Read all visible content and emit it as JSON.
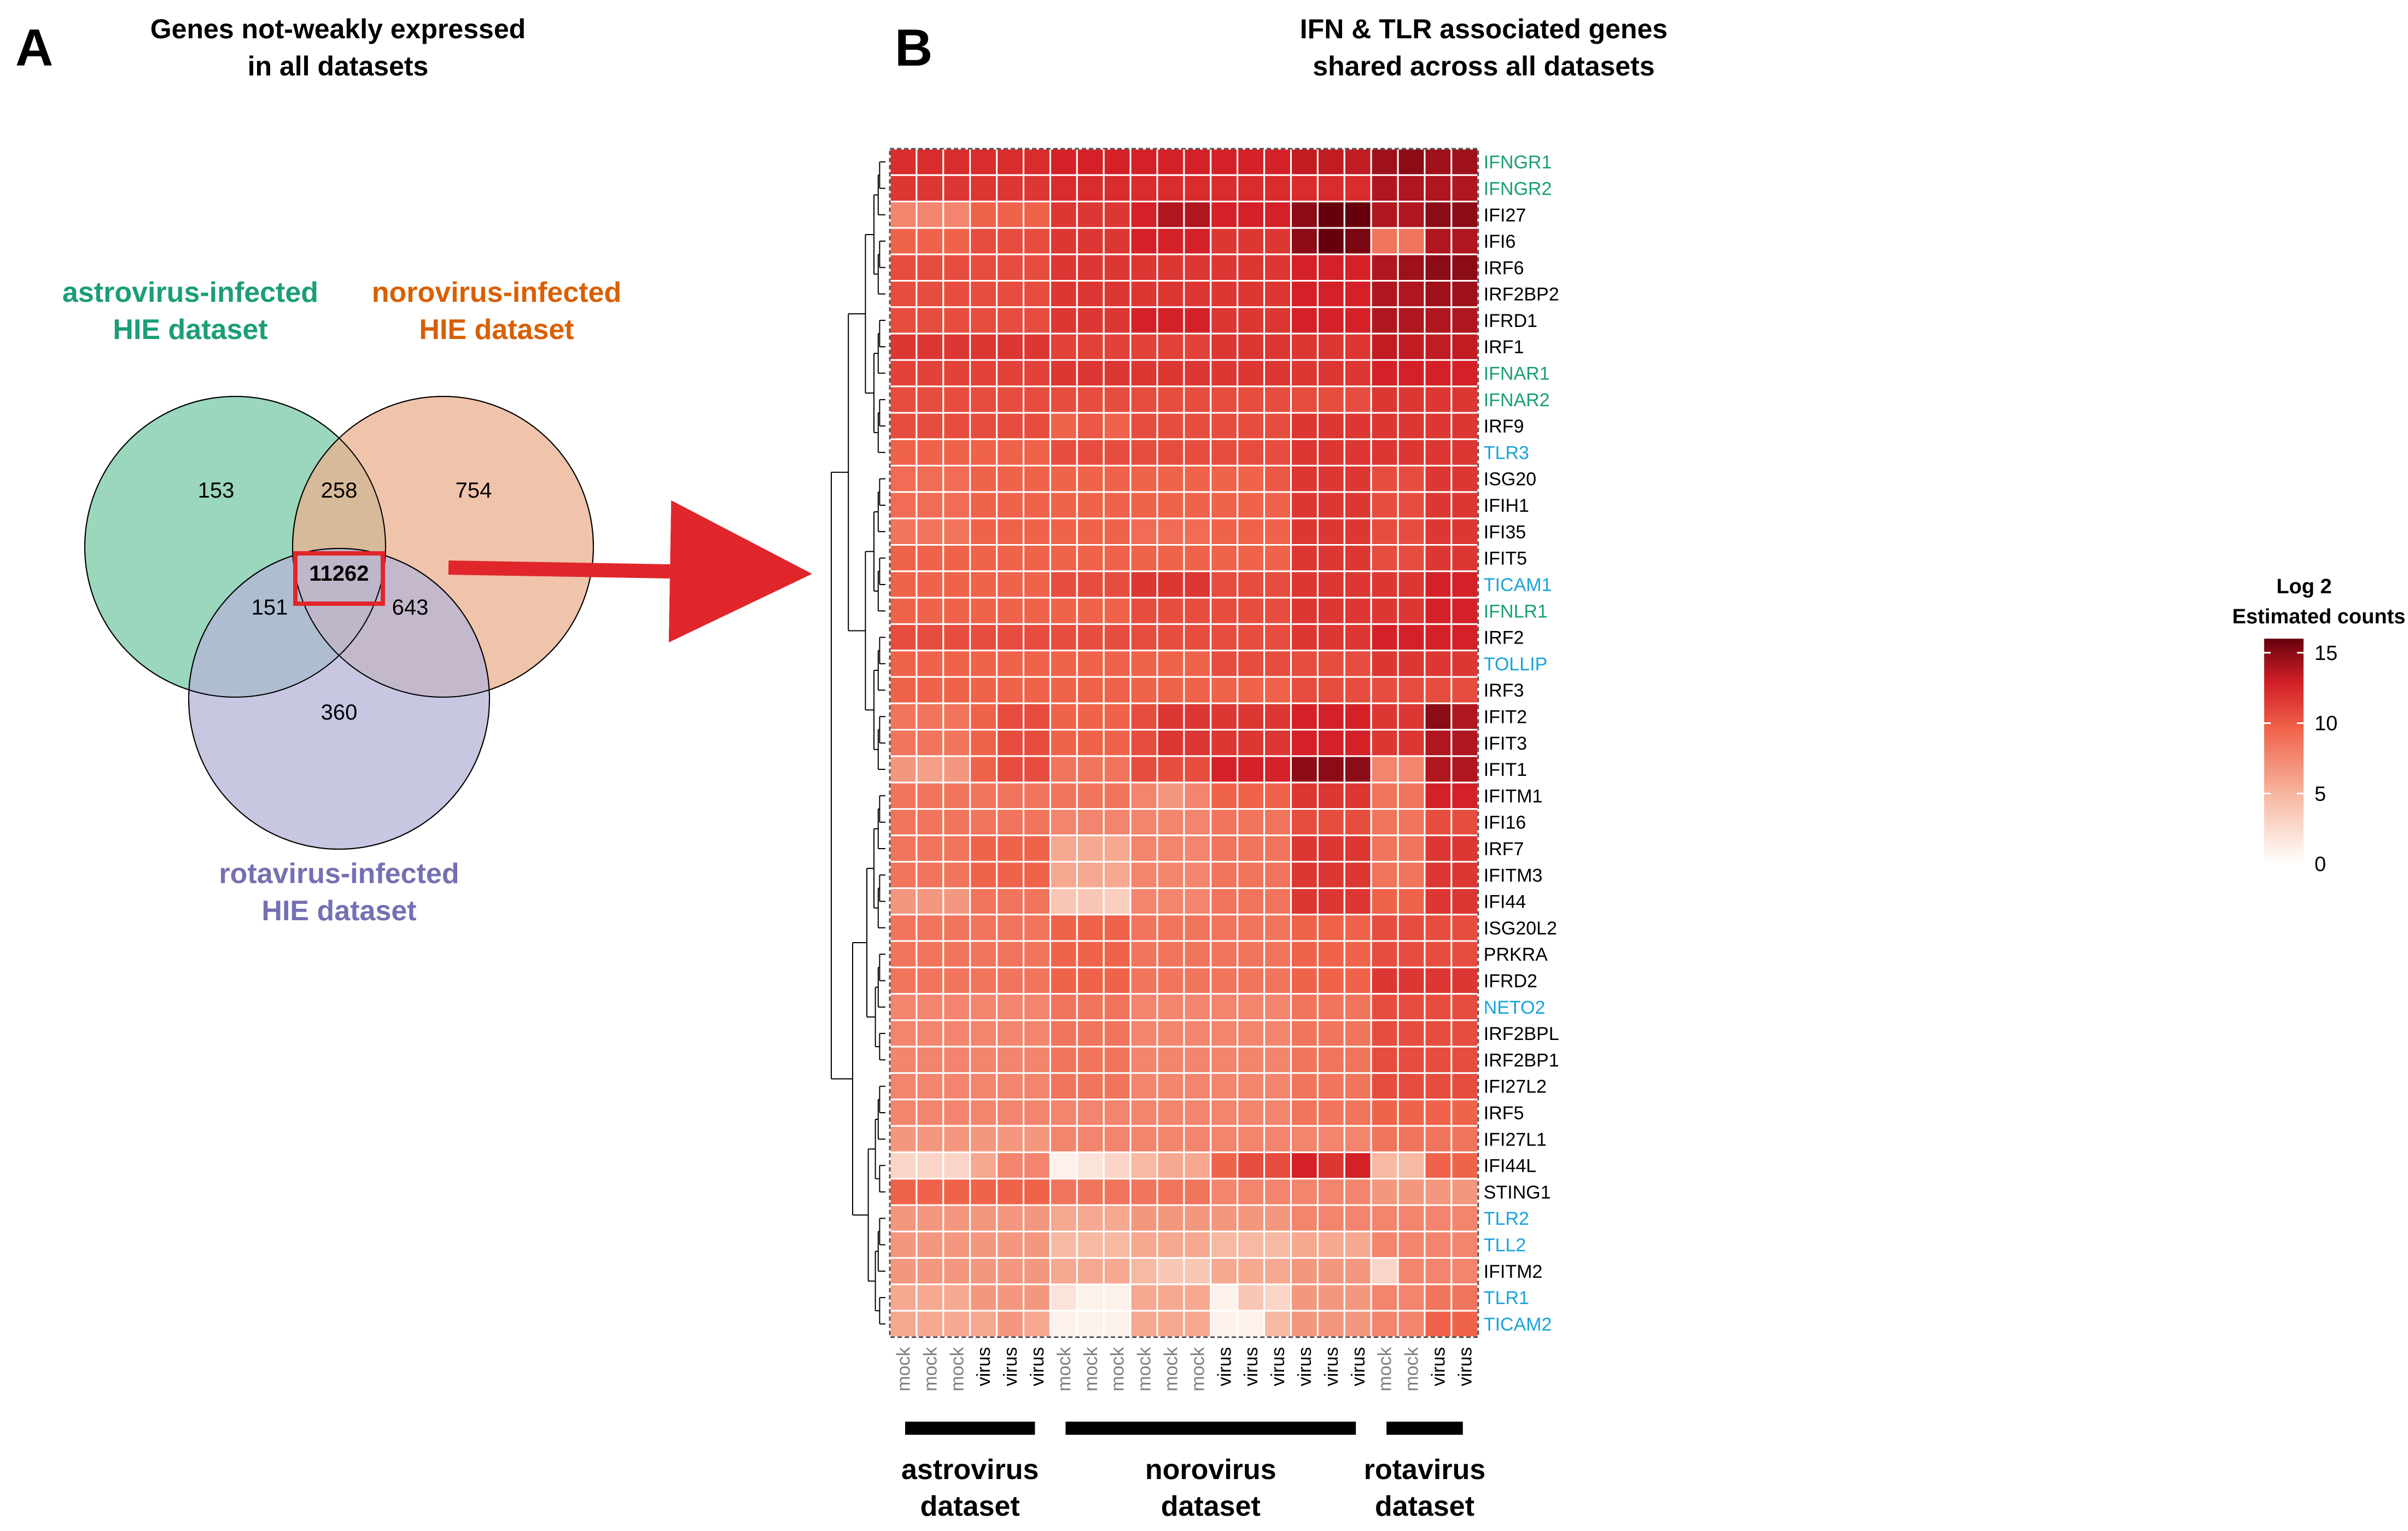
{
  "panel_a": {
    "letter": "A",
    "title_line1": "Genes not-weakly expressed",
    "title_line2": "in all datasets",
    "sets": [
      {
        "label_line1": "astrovirus-infected",
        "label_line2": "HIE dataset",
        "color": "#1b9e77",
        "fill": "#8fd3b5"
      },
      {
        "label_line1": "norovirus-infected",
        "label_line2": "HIE dataset",
        "color": "#d95f02",
        "fill": "#ebb08f"
      },
      {
        "label_line1": "rotavirus-infected",
        "label_line2": "HIE dataset",
        "color": "#7570b3",
        "fill": "#b6b4d8"
      }
    ],
    "counts": {
      "astro_only": "153",
      "noro_only": "754",
      "rota_only": "360",
      "astro_noro": "258",
      "astro_rota": "151",
      "noro_rota": "643",
      "all": "11262"
    },
    "highlight_color": "#e0262b"
  },
  "panel_b": {
    "letter": "B",
    "title_line1": "IFN & TLR associated genes",
    "title_line2": "shared across all datasets"
  },
  "chart_data": {
    "type": "heatmap",
    "title": "IFN & TLR associated genes shared across all datasets",
    "rows": [
      {
        "gene": "IFNGR1",
        "category": "IFN receptor",
        "color": "#1b9e77"
      },
      {
        "gene": "IFNGR2",
        "category": "IFN receptor",
        "color": "#1b9e77"
      },
      {
        "gene": "IFI27",
        "category": "other",
        "color": "#000000"
      },
      {
        "gene": "IFI6",
        "category": "other",
        "color": "#000000"
      },
      {
        "gene": "IRF6",
        "category": "other",
        "color": "#000000"
      },
      {
        "gene": "IRF2BP2",
        "category": "other",
        "color": "#000000"
      },
      {
        "gene": "IFRD1",
        "category": "other",
        "color": "#000000"
      },
      {
        "gene": "IRF1",
        "category": "other",
        "color": "#000000"
      },
      {
        "gene": "IFNAR1",
        "category": "IFN receptor",
        "color": "#1b9e77"
      },
      {
        "gene": "IFNAR2",
        "category": "IFN receptor",
        "color": "#1b9e77"
      },
      {
        "gene": "IRF9",
        "category": "other",
        "color": "#000000"
      },
      {
        "gene": "TLR3",
        "category": "TLR",
        "color": "#1aa3d9"
      },
      {
        "gene": "ISG20",
        "category": "other",
        "color": "#000000"
      },
      {
        "gene": "IFIH1",
        "category": "other",
        "color": "#000000"
      },
      {
        "gene": "IFI35",
        "category": "other",
        "color": "#000000"
      },
      {
        "gene": "IFIT5",
        "category": "other",
        "color": "#000000"
      },
      {
        "gene": "TICAM1",
        "category": "TLR",
        "color": "#1aa3d9"
      },
      {
        "gene": "IFNLR1",
        "category": "IFN receptor",
        "color": "#1b9e77"
      },
      {
        "gene": "IRF2",
        "category": "other",
        "color": "#000000"
      },
      {
        "gene": "TOLLIP",
        "category": "TLR",
        "color": "#1aa3d9"
      },
      {
        "gene": "IRF3",
        "category": "other",
        "color": "#000000"
      },
      {
        "gene": "IFIT2",
        "category": "other",
        "color": "#000000"
      },
      {
        "gene": "IFIT3",
        "category": "other",
        "color": "#000000"
      },
      {
        "gene": "IFIT1",
        "category": "other",
        "color": "#000000"
      },
      {
        "gene": "IFITM1",
        "category": "other",
        "color": "#000000"
      },
      {
        "gene": "IFI16",
        "category": "other",
        "color": "#000000"
      },
      {
        "gene": "IRF7",
        "category": "other",
        "color": "#000000"
      },
      {
        "gene": "IFITM3",
        "category": "other",
        "color": "#000000"
      },
      {
        "gene": "IFI44",
        "category": "other",
        "color": "#000000"
      },
      {
        "gene": "ISG20L2",
        "category": "other",
        "color": "#000000"
      },
      {
        "gene": "PRKRA",
        "category": "other",
        "color": "#000000"
      },
      {
        "gene": "IFRD2",
        "category": "other",
        "color": "#000000"
      },
      {
        "gene": "NETO2",
        "category": "TLR",
        "color": "#1aa3d9"
      },
      {
        "gene": "IRF2BPL",
        "category": "other",
        "color": "#000000"
      },
      {
        "gene": "IRF2BP1",
        "category": "other",
        "color": "#000000"
      },
      {
        "gene": "IFI27L2",
        "category": "other",
        "color": "#000000"
      },
      {
        "gene": "IRF5",
        "category": "other",
        "color": "#000000"
      },
      {
        "gene": "IFI27L1",
        "category": "other",
        "color": "#000000"
      },
      {
        "gene": "IFI44L",
        "category": "other",
        "color": "#000000"
      },
      {
        "gene": "STING1",
        "category": "other",
        "color": "#000000"
      },
      {
        "gene": "TLR2",
        "category": "TLR",
        "color": "#1aa3d9"
      },
      {
        "gene": "TLL2",
        "category": "TLR",
        "color": "#1aa3d9"
      },
      {
        "gene": "IFITM2",
        "category": "other",
        "color": "#000000"
      },
      {
        "gene": "TLR1",
        "category": "TLR",
        "color": "#1aa3d9"
      },
      {
        "gene": "TICAM2",
        "category": "TLR",
        "color": "#1aa3d9"
      }
    ],
    "columns": [
      "mock",
      "mock",
      "mock",
      "virus",
      "virus",
      "virus",
      "mock",
      "mock",
      "mock",
      "mock",
      "mock",
      "mock",
      "virus",
      "virus",
      "virus",
      "virus",
      "virus",
      "virus",
      "mock",
      "mock",
      "virus",
      "virus"
    ],
    "column_label_colors": {
      "mock": "#808080",
      "virus": "#000000"
    },
    "groups": [
      {
        "label_line1": "astrovirus",
        "label_line2": "dataset",
        "start": 0,
        "end": 5
      },
      {
        "label_line1": "norovirus",
        "label_line2": "dataset",
        "start": 6,
        "end": 17
      },
      {
        "label_line1": "rotavirus",
        "label_line2": "dataset",
        "start": 18,
        "end": 21
      }
    ],
    "values": [
      [
        12.5,
        12.5,
        12.5,
        12.5,
        12.5,
        12.5,
        13,
        13,
        13,
        13,
        13,
        13,
        13,
        13,
        13,
        13.5,
        13.5,
        13.5,
        14.5,
        15,
        14.5,
        14.5
      ],
      [
        12,
        12,
        12,
        12,
        12,
        12,
        12.5,
        12.5,
        12.5,
        12.5,
        12.5,
        12.5,
        12.5,
        12.5,
        12.5,
        12.5,
        12.5,
        12.5,
        14,
        14,
        14,
        14
      ],
      [
        8,
        8,
        8,
        10,
        10,
        10,
        12,
        12,
        12,
        13,
        14,
        14,
        13,
        13,
        13,
        15,
        16,
        16,
        14,
        14,
        15,
        15
      ],
      [
        10,
        10,
        10,
        11,
        11,
        11,
        12,
        12,
        12,
        13,
        13,
        13,
        12,
        12,
        12,
        15,
        16,
        15.5,
        9,
        9,
        14,
        14
      ],
      [
        11,
        11,
        11,
        11,
        11,
        11,
        12,
        12,
        12,
        12,
        12,
        12,
        12,
        12,
        12,
        13,
        13,
        13,
        14,
        14.5,
        15,
        15
      ],
      [
        11,
        11,
        11,
        11,
        11,
        11,
        12,
        12,
        12,
        12,
        12,
        12,
        12,
        12,
        12,
        13,
        13,
        13,
        14,
        14,
        14.5,
        14.5
      ],
      [
        11,
        11,
        11,
        11,
        11,
        11,
        12,
        12,
        12,
        13,
        13,
        13,
        12,
        12,
        12,
        13,
        13,
        13,
        14,
        14,
        14,
        14
      ],
      [
        12,
        12,
        12,
        12,
        12,
        12,
        11.5,
        11.5,
        11.5,
        11.5,
        11.5,
        11.5,
        12,
        12,
        12,
        12,
        12,
        12,
        13.5,
        13.5,
        13.5,
        13.5
      ],
      [
        11.5,
        11.5,
        11.5,
        11.5,
        11.5,
        11.5,
        12,
        12,
        12,
        12,
        12,
        12,
        12,
        12,
        12,
        12,
        12,
        12,
        13,
        13,
        13,
        13
      ],
      [
        11,
        11,
        11,
        11,
        11,
        11,
        11,
        11,
        11,
        11,
        11,
        11,
        11,
        11,
        11,
        11,
        11,
        11,
        12,
        12,
        12,
        12
      ],
      [
        11,
        11,
        11,
        11,
        11,
        11,
        10,
        10.5,
        10,
        11,
        11,
        11,
        11,
        11,
        11,
        12,
        12,
        12,
        12,
        12,
        12,
        12
      ],
      [
        10,
        10,
        10,
        10,
        10,
        10,
        11,
        11,
        11,
        11,
        11,
        11,
        11,
        11,
        11,
        12,
        12,
        12,
        12,
        12,
        12,
        12
      ],
      [
        9.5,
        9.5,
        9.5,
        10,
        10,
        10,
        10,
        10,
        10,
        10,
        10,
        10,
        10,
        10,
        10.5,
        12,
        12,
        12,
        11,
        11,
        12,
        12
      ],
      [
        9.5,
        9.5,
        9.5,
        10,
        10,
        10,
        10,
        10,
        10,
        10,
        10,
        10,
        10,
        10,
        10,
        12,
        12,
        12,
        11,
        11,
        12,
        12
      ],
      [
        9,
        9,
        9,
        10,
        10,
        10,
        10,
        10,
        10,
        9.5,
        9.5,
        9.5,
        10,
        10,
        10,
        12,
        12,
        12,
        11,
        11,
        12,
        12
      ],
      [
        10,
        10,
        10,
        10,
        10,
        10,
        10,
        10,
        10,
        10,
        10,
        10,
        10,
        10,
        10,
        12,
        12,
        12,
        11,
        11,
        12,
        12
      ],
      [
        10,
        10,
        10,
        10,
        10,
        10,
        11,
        11,
        11,
        12,
        12,
        12,
        11,
        11,
        11,
        12,
        12,
        12,
        12,
        12,
        13,
        13
      ],
      [
        10,
        10,
        10,
        10,
        10,
        10,
        10,
        10,
        10,
        11,
        11,
        11,
        11,
        11,
        11,
        12,
        12,
        12,
        12,
        12,
        13,
        13
      ],
      [
        11,
        11,
        11,
        11,
        11,
        11,
        11,
        11,
        11,
        11,
        11,
        11,
        11,
        11,
        11,
        12,
        12,
        12,
        13,
        13,
        13,
        13
      ],
      [
        10,
        10,
        10,
        10,
        10,
        10,
        10,
        10,
        10,
        10,
        10,
        10,
        11,
        11,
        11,
        11,
        11,
        11,
        12,
        12,
        12,
        12
      ],
      [
        10,
        10,
        10,
        10,
        10,
        10,
        10,
        10,
        10,
        10,
        10,
        10,
        10,
        10,
        10,
        11,
        11,
        11,
        11,
        11,
        11,
        11
      ],
      [
        9,
        9,
        9,
        10,
        11,
        11,
        10,
        10,
        10,
        11,
        12,
        12,
        12,
        12,
        12,
        13,
        13,
        13,
        12,
        12,
        15,
        14
      ],
      [
        9,
        9,
        9,
        10,
        11,
        11,
        10,
        10,
        10,
        11,
        12,
        12,
        12,
        12,
        12,
        13,
        13,
        13,
        12,
        12,
        14,
        14
      ],
      [
        7,
        6.5,
        7,
        10,
        11,
        11,
        9,
        9,
        9,
        11,
        11,
        11,
        13,
        13,
        13,
        15,
        15,
        15,
        8,
        8,
        14,
        14
      ],
      [
        9,
        9,
        9,
        9,
        9,
        9,
        9,
        9,
        9,
        8,
        7,
        8,
        10,
        10,
        10,
        12,
        12,
        12,
        9,
        9,
        13,
        13
      ],
      [
        9,
        9,
        9,
        9,
        9,
        9,
        8,
        8,
        8,
        8,
        8,
        8,
        9,
        9,
        9,
        11,
        11,
        11,
        9,
        9,
        11,
        11
      ],
      [
        9,
        9,
        9,
        10,
        10,
        10,
        6,
        6,
        6,
        8,
        8,
        8,
        9,
        9,
        9,
        12,
        12,
        12,
        9,
        9,
        12,
        12
      ],
      [
        9,
        9,
        9,
        10,
        10,
        10,
        6,
        6,
        6,
        8,
        8,
        8,
        9,
        9,
        9,
        12,
        12,
        12,
        9,
        9,
        12,
        12
      ],
      [
        7,
        7,
        7,
        9,
        9,
        9,
        4,
        4,
        3.5,
        8,
        8,
        8,
        9,
        9,
        9,
        12,
        12,
        12,
        10,
        10,
        12,
        12
      ],
      [
        9,
        9,
        9,
        9,
        9,
        9,
        10,
        10,
        10,
        9,
        9,
        9,
        9,
        9,
        9,
        10,
        10,
        10,
        11,
        11,
        11,
        11
      ],
      [
        9,
        9,
        9,
        9,
        9,
        9,
        10,
        10,
        10,
        9,
        9,
        9,
        9,
        9,
        9,
        10,
        10,
        10,
        11,
        11,
        11,
        11
      ],
      [
        9,
        9,
        9,
        9,
        9,
        9,
        10,
        10,
        10,
        9,
        9,
        9,
        9,
        9,
        9,
        10,
        10,
        10,
        12,
        12,
        12,
        12
      ],
      [
        8,
        8,
        8,
        8,
        8,
        8,
        9,
        9,
        9,
        8,
        8,
        8,
        8,
        8,
        8,
        9,
        9,
        9,
        11,
        11,
        11,
        11
      ],
      [
        8,
        8,
        8,
        8,
        8,
        8,
        9,
        9,
        9,
        8,
        8,
        8,
        8,
        8,
        8,
        9,
        9,
        9,
        11,
        11,
        11,
        11
      ],
      [
        8,
        8,
        8,
        8,
        8,
        8,
        9,
        9,
        9,
        8,
        8,
        8,
        8,
        8,
        8,
        9,
        9,
        9,
        11,
        11,
        11,
        11
      ],
      [
        8,
        8,
        8,
        8,
        8,
        8,
        9,
        9,
        9,
        8,
        8,
        8,
        8,
        8,
        8,
        9,
        9,
        9,
        11,
        11,
        11,
        11
      ],
      [
        8,
        8,
        8,
        8,
        8,
        8,
        8,
        8,
        8,
        8,
        8,
        8,
        8,
        8,
        8,
        9,
        9,
        9,
        10,
        10,
        10,
        10
      ],
      [
        7,
        7,
        7,
        7,
        7,
        7,
        8,
        8,
        8,
        8,
        8,
        8,
        8,
        8,
        8,
        8,
        8,
        8,
        9,
        9,
        9,
        9
      ],
      [
        3,
        3,
        3,
        6,
        8,
        8,
        1,
        2,
        3,
        5,
        6,
        6,
        10,
        11,
        11,
        13,
        12,
        13,
        5,
        5,
        10,
        10
      ],
      [
        10,
        10,
        10,
        10,
        10,
        10,
        9,
        9,
        9,
        9,
        9,
        9,
        8,
        8,
        8,
        8,
        8,
        8,
        7,
        7,
        7,
        7
      ],
      [
        7,
        7,
        7,
        7,
        7,
        7,
        6,
        6,
        6,
        7,
        7,
        7,
        7,
        7,
        7,
        8,
        8,
        8,
        8,
        8,
        8,
        8
      ],
      [
        7,
        7,
        7,
        7,
        7,
        7,
        5,
        5,
        5,
        6,
        6,
        6,
        5,
        5,
        5,
        6,
        6,
        6,
        8,
        8,
        8,
        8
      ],
      [
        7,
        7,
        7,
        7,
        7,
        7,
        6,
        6,
        6,
        5,
        4,
        4,
        6,
        6,
        6,
        7,
        7,
        7,
        3,
        8,
        8,
        8
      ],
      [
        6,
        6,
        6,
        7,
        7,
        7,
        2,
        1,
        1,
        6,
        6,
        6,
        1,
        4,
        3,
        7,
        7,
        7,
        8,
        8,
        9,
        9
      ],
      [
        6,
        6,
        6,
        6,
        7,
        6,
        1,
        1,
        1,
        6,
        6,
        6,
        1,
        1,
        5,
        7,
        7,
        7,
        8,
        8,
        10,
        10
      ]
    ],
    "dendrogram_order": "rows clustered (hierarchical); dendrogram drawn at left",
    "legend": {
      "title_line1": "Log 2",
      "title_line2": "Estimated counts",
      "ticks": [
        "15",
        "10",
        "5",
        "0"
      ],
      "range": [
        0,
        16
      ],
      "colors": [
        "#ffffff",
        "#f7b9a2",
        "#f0634b",
        "#d42127",
        "#67000d"
      ]
    }
  }
}
